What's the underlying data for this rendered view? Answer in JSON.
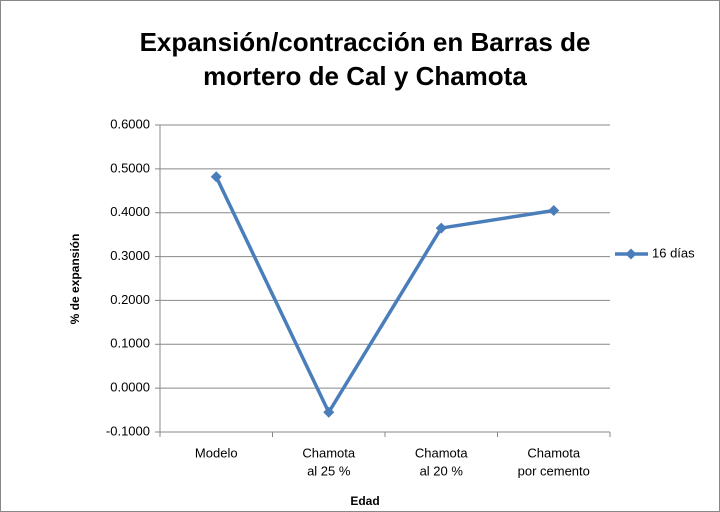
{
  "chart_data": {
    "type": "line",
    "title": [
      "Expansión/contracción en Barras de",
      "mortero de Cal y Chamota"
    ],
    "x_label": "Edad",
    "y_label": "% de expansión",
    "categories": [
      [
        "Modelo"
      ],
      [
        "Chamota",
        "al 25 %"
      ],
      [
        "Chamota",
        "al 20 %"
      ],
      [
        "Chamota",
        "por cemento"
      ]
    ],
    "series": [
      {
        "name": "16 días",
        "color": "#4a7ebb",
        "values": [
          0.482,
          -0.055,
          0.365,
          0.405
        ]
      }
    ],
    "ylim": [
      -0.1,
      0.6
    ],
    "yticks": [
      {
        "value": -0.1,
        "label": "-0.1000"
      },
      {
        "value": 0,
        "label": "0.0000"
      },
      {
        "value": 0.1,
        "label": "0.1000"
      },
      {
        "value": 0.2,
        "label": "0.2000"
      },
      {
        "value": 0.3,
        "label": "0.3000"
      },
      {
        "value": 0.4,
        "label": "0.4000"
      },
      {
        "value": 0.5,
        "label": "0.5000"
      },
      {
        "value": 0.6,
        "label": "0.6000"
      }
    ],
    "grid": true,
    "legend": "right"
  }
}
